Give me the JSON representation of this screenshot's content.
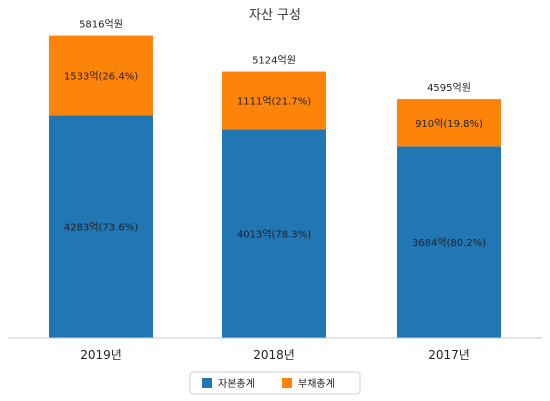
{
  "chart_data": {
    "type": "bar",
    "stacked": true,
    "title": "자산 구성",
    "categories": [
      "2019년",
      "2018년",
      "2017년"
    ],
    "series": [
      {
        "name": "자본총계",
        "values": [
          4283,
          4013,
          3684
        ],
        "labels": [
          "4283억(73.6%)",
          "4013억(78.3%)",
          "3684억(80.2%)"
        ],
        "color": "#2176b4"
      },
      {
        "name": "부채총계",
        "values": [
          1533,
          1111,
          910
        ],
        "labels": [
          "1533억(26.4%)",
          "1111억(21.7%)",
          "910억(19.8%)"
        ],
        "color": "#fd8409"
      }
    ],
    "totals": [
      "5816억원",
      "5124억원",
      "4595억원"
    ],
    "total_values": [
      5816,
      5124,
      4595
    ],
    "ylim": [
      0,
      6500
    ],
    "grid": false,
    "legend_position": "bottom"
  }
}
